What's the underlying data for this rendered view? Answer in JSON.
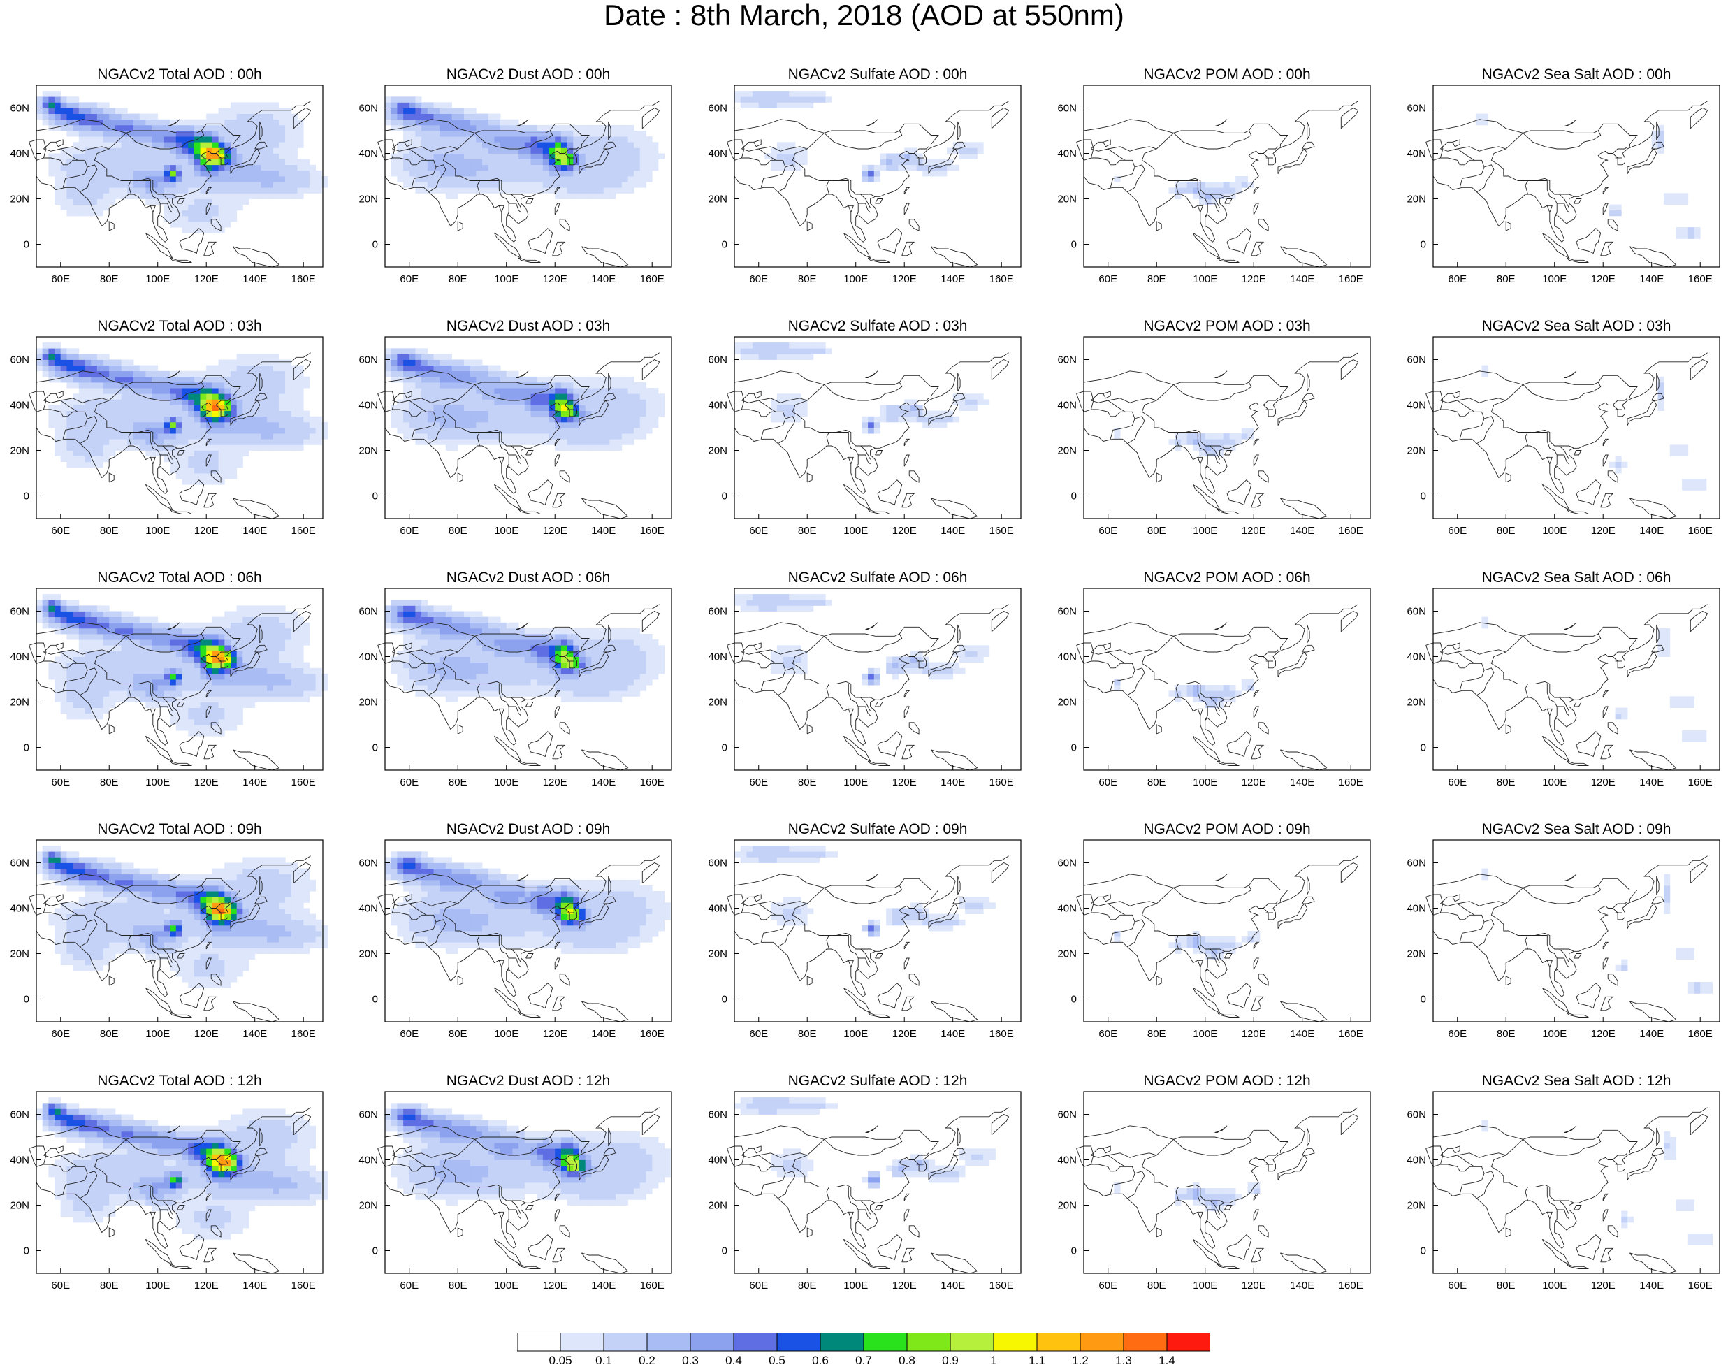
{
  "title": "Date : 8th March, 2018 (AOD at 550nm)",
  "chart_data": {
    "type": "heatmap",
    "title": "Date : 8th March, 2018 (AOD at 550nm)",
    "x_ticks": [
      "60E",
      "80E",
      "100E",
      "120E",
      "140E",
      "160E"
    ],
    "y_ticks": [
      "60N",
      "40N",
      "20N",
      "0"
    ],
    "xlim": [
      50,
      168
    ],
    "ylim": [
      -10,
      70
    ],
    "colorbar": {
      "labels": [
        "0.05",
        "0.1",
        "0.2",
        "0.3",
        "0.4",
        "0.5",
        "0.6",
        "0.7",
        "0.8",
        "0.9",
        "1",
        "1.1",
        "1.2",
        "1.3",
        "1.4"
      ],
      "colors": [
        "#ffffff",
        "#dde6fb",
        "#c4d2f8",
        "#a9bcf4",
        "#8da2ef",
        "#5f6fe3",
        "#1a52e6",
        "#00897b",
        "#2ae21c",
        "#7ee818",
        "#b6f03c",
        "#f7f702",
        "#ffc20e",
        "#ff9a12",
        "#ff6c12",
        "#ff1a10"
      ]
    },
    "panels": [
      [
        {
          "title": "NGACv2 Total AOD : 00h",
          "species": "total",
          "hour": 0
        },
        {
          "title": "NGACv2 Dust AOD : 00h",
          "species": "dust",
          "hour": 0
        },
        {
          "title": "NGACv2 Sulfate AOD : 00h",
          "species": "sulfate",
          "hour": 0
        },
        {
          "title": "NGACv2 POM AOD : 00h",
          "species": "pom",
          "hour": 0
        },
        {
          "title": "NGACv2 Sea Salt AOD : 00h",
          "species": "seasalt",
          "hour": 0
        }
      ],
      [
        {
          "title": "NGACv2 Total AOD : 03h",
          "species": "total",
          "hour": 3
        },
        {
          "title": "NGACv2 Dust AOD : 03h",
          "species": "dust",
          "hour": 3
        },
        {
          "title": "NGACv2 Sulfate AOD : 03h",
          "species": "sulfate",
          "hour": 3
        },
        {
          "title": "NGACv2 POM AOD : 03h",
          "species": "pom",
          "hour": 3
        },
        {
          "title": "NGACv2 Sea Salt AOD : 03h",
          "species": "seasalt",
          "hour": 3
        }
      ],
      [
        {
          "title": "NGACv2 Total AOD : 06h",
          "species": "total",
          "hour": 6
        },
        {
          "title": "NGACv2 Dust AOD : 06h",
          "species": "dust",
          "hour": 6
        },
        {
          "title": "NGACv2 Sulfate AOD : 06h",
          "species": "sulfate",
          "hour": 6
        },
        {
          "title": "NGACv2 POM AOD : 06h",
          "species": "pom",
          "hour": 6
        },
        {
          "title": "NGACv2 Sea Salt AOD : 06h",
          "species": "seasalt",
          "hour": 6
        }
      ],
      [
        {
          "title": "NGACv2 Total AOD : 09h",
          "species": "total",
          "hour": 9
        },
        {
          "title": "NGACv2 Dust AOD : 09h",
          "species": "dust",
          "hour": 9
        },
        {
          "title": "NGACv2 Sulfate AOD : 09h",
          "species": "sulfate",
          "hour": 9
        },
        {
          "title": "NGACv2 POM AOD : 09h",
          "species": "pom",
          "hour": 9
        },
        {
          "title": "NGACv2 Sea Salt  AOD : 09h",
          "species": "seasalt",
          "hour": 9
        }
      ],
      [
        {
          "title": "NGACv2 Total AOD  : 12h",
          "species": "total",
          "hour": 12
        },
        {
          "title": "NGACv2 Dust AOD : 12h",
          "species": "dust",
          "hour": 12
        },
        {
          "title": "NGACv2 Sulfate AOD : 12h",
          "species": "sulfate",
          "hour": 12
        },
        {
          "title": "NGACv2 POM  AOD : 12h",
          "species": "pom",
          "hour": 12
        },
        {
          "title": "NGACv2 Sea Salt  AOD : 12h",
          "species": "seasalt",
          "hour": 12
        }
      ]
    ]
  }
}
